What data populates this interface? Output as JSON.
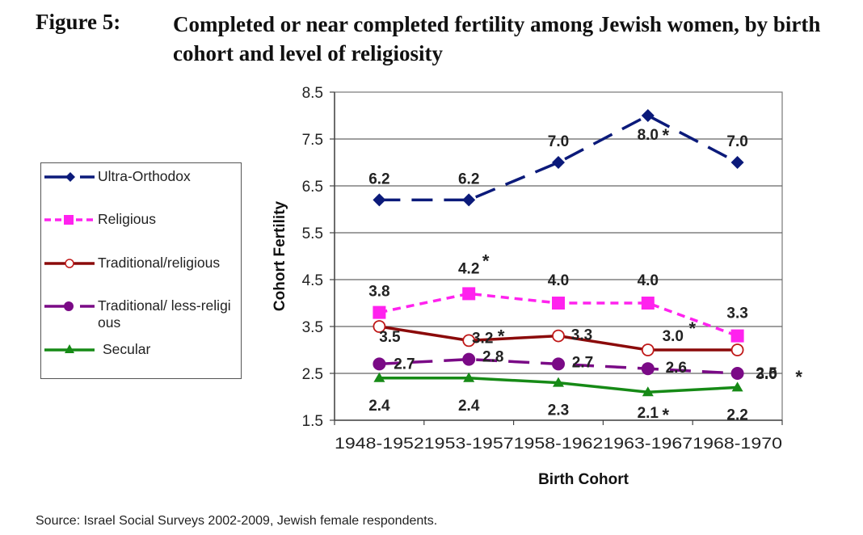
{
  "figure": {
    "label": "Figure 5:",
    "title": "Completed or near completed fertility among Jewish women, by birth cohort and level of religiosity",
    "source": "Source: Israel Social Surveys 2002-2009, Jewish female respondents."
  },
  "chart_data": {
    "type": "line",
    "title": "Completed or near completed fertility among Jewish women, by birth cohort and level of religiosity",
    "xlabel": "Birth Cohort",
    "ylabel": "Cohort Fertility",
    "categories": [
      "1948-1952",
      "1953-1957",
      "1958-1962",
      "1963-1967",
      "1968-1970"
    ],
    "ylim": [
      1.5,
      8.5
    ],
    "yticks": [
      "8.5",
      "7.5",
      "6.5",
      "5.5",
      "4.5",
      "3.5",
      "2.5",
      "1.5"
    ],
    "grid": true,
    "legend_position": "left",
    "series": [
      {
        "name": "Ultra-Orthodox",
        "color": "#0b1a7a",
        "marker": "diamond",
        "line_style": "long-dash",
        "values": [
          6.2,
          6.2,
          7.0,
          8.0,
          7.0
        ],
        "labels": [
          "6.2",
          "6.2",
          "7.0",
          "8.0",
          "7.0"
        ],
        "significant": [
          false,
          false,
          false,
          true,
          false
        ]
      },
      {
        "name": "Religious",
        "color": "#ff22ee",
        "marker": "square",
        "line_style": "short-dash",
        "values": [
          3.8,
          4.2,
          4.0,
          4.0,
          3.3
        ],
        "labels": [
          "3.8",
          "4.2",
          "4.0",
          "4.0",
          "3.3"
        ],
        "significant": [
          false,
          true,
          false,
          false,
          false
        ]
      },
      {
        "name": "Traditional/religious",
        "color": "#8b0a0a",
        "marker": "open-circle",
        "line_style": "solid",
        "values": [
          3.5,
          3.2,
          3.3,
          3.0,
          3.0
        ],
        "labels": [
          "3.5",
          "3.2",
          "3.3",
          "3.0",
          "3.0"
        ],
        "significant": [
          false,
          true,
          false,
          true,
          true
        ]
      },
      {
        "name": "Traditional/ less-religious",
        "color": "#7a0a86",
        "marker": "circle",
        "line_style": "long-dash",
        "values": [
          2.7,
          2.8,
          2.7,
          2.6,
          2.5
        ],
        "labels": [
          "2.7",
          "2.8",
          "2.7",
          "2.6",
          "2.5"
        ],
        "significant": [
          false,
          false,
          false,
          false,
          false
        ]
      },
      {
        "name": "Secular",
        "color": "#168a16",
        "marker": "triangle",
        "line_style": "solid",
        "values": [
          2.4,
          2.4,
          2.3,
          2.1,
          2.2
        ],
        "labels": [
          "2.4",
          "2.4",
          "2.3",
          "2.1",
          "2.2"
        ],
        "significant": [
          false,
          false,
          false,
          true,
          false
        ]
      }
    ],
    "significance_marker": "*"
  },
  "legend": {
    "items": [
      {
        "label": "Ultra-Orthodox"
      },
      {
        "label": "Religious"
      },
      {
        "label": "Traditional/religious"
      },
      {
        "label": "Traditional/ less-religious"
      },
      {
        "label": "Secular"
      }
    ]
  }
}
